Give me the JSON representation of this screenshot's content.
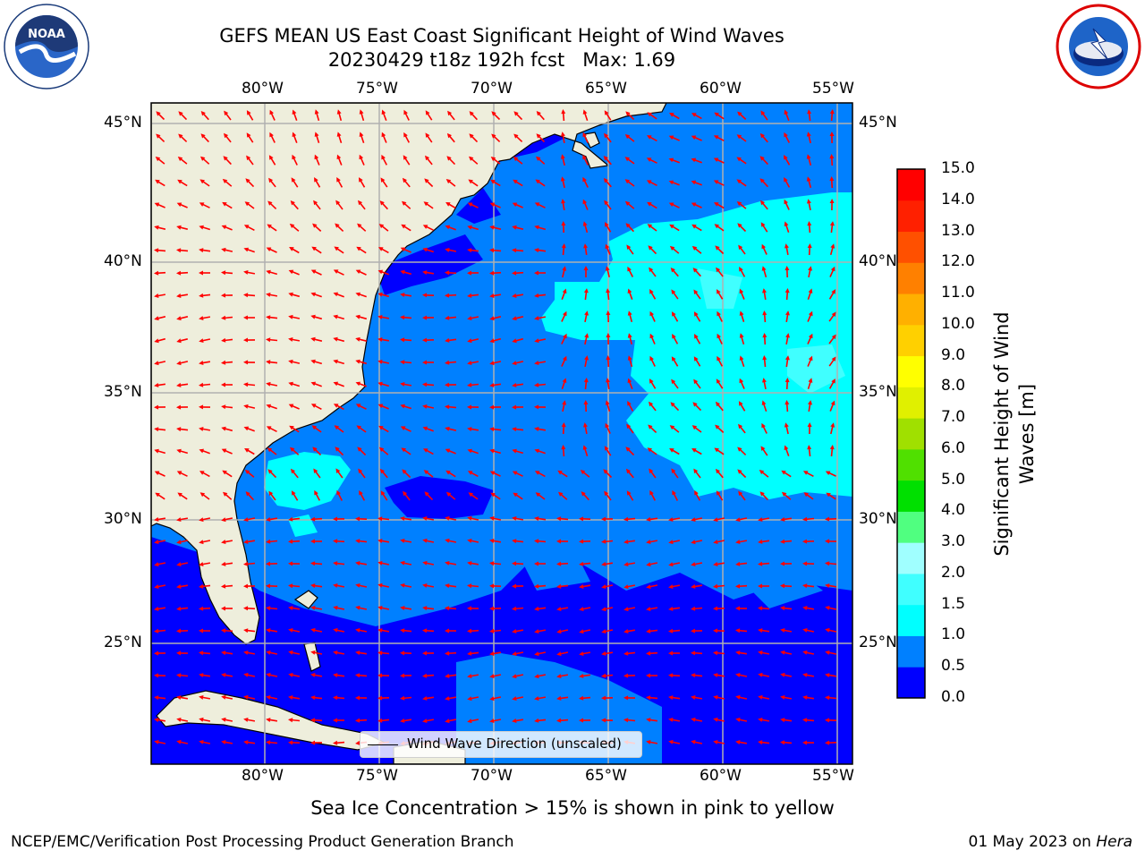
{
  "header": {
    "title_line1": "GEFS MEAN US East Coast Significant Height of Wind Waves",
    "title_line2": "20230429 t18z 192h fcst   Max: 1.69"
  },
  "logos": {
    "left": {
      "name": "noaa-logo",
      "text": "NOAA",
      "ring_text": "NATIONAL OCEANIC AND ATMOSPHERIC ADMINISTRATION · U.S. DEPARTMENT OF COMMERCE"
    },
    "right": {
      "name": "nws-logo",
      "ring_text": "NATIONAL WEATHER SERVICE"
    }
  },
  "map": {
    "lon_labels": [
      "80°W",
      "75°W",
      "70°W",
      "65°W",
      "60°W",
      "55°W"
    ],
    "lat_labels": [
      "45°N",
      "40°N",
      "35°N",
      "30°N",
      "25°N"
    ],
    "legend_label": "Wind Wave Direction (unscaled)",
    "colors": {
      "land": "#eeeedc",
      "grid": "#b0b0b0",
      "arrows": "#ff0000"
    }
  },
  "colorbar": {
    "label": "Significant Height of Wind Waves [m]",
    "label_line1": "Significant Height of Wind",
    "label_line2": "Waves [m]",
    "ticks": [
      "0.0",
      "0.5",
      "1.0",
      "1.5",
      "2.0",
      "3.0",
      "4.0",
      "5.0",
      "6.0",
      "7.0",
      "8.0",
      "9.0",
      "10.0",
      "11.0",
      "12.0",
      "13.0",
      "14.0",
      "15.0"
    ],
    "colors": [
      "#0000ff",
      "#0080ff",
      "#00ffff",
      "#40ffff",
      "#a0ffff",
      "#50ff80",
      "#00e000",
      "#50e000",
      "#a0e000",
      "#e0f000",
      "#ffff00",
      "#ffd000",
      "#ffb000",
      "#ff8000",
      "#ff5000",
      "#ff2000",
      "#ff0000"
    ]
  },
  "footer": {
    "ice_note": "Sea Ice Concentration > 15% is shown in pink to yellow",
    "branch": "NCEP/EMC/Verification Post Processing Product Generation Branch",
    "date": "01 May 2023 on ",
    "machine": "Hera"
  }
}
